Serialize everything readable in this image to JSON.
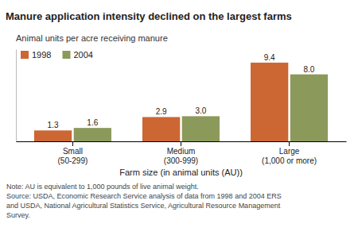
{
  "chart_data": {
    "type": "bar",
    "title": "Manure application intensity declined on the largest farms",
    "subtitle": "Animal units per acre receiving manure",
    "xlabel": "Farm size (in animal units (AU))",
    "categories": [
      "Small\n(50-299)",
      "Medium\n(300-999)",
      "Large\n(1,000 or more)"
    ],
    "series": [
      {
        "name": "1998",
        "color": "#CC6633",
        "values": [
          1.3,
          2.9,
          9.4
        ],
        "value_labels": [
          "1.3",
          "2.9",
          "9.4"
        ]
      },
      {
        "name": "2004",
        "color": "#8B9A5B",
        "values": [
          1.6,
          3.0,
          8.0
        ],
        "value_labels": [
          "1.6",
          "3.0",
          "8.0"
        ]
      }
    ],
    "ylim": [
      0,
      11
    ],
    "tick_labels": "x",
    "data_labels": true,
    "legend": "upper left",
    "note": "Note: AU is equivalent to 1,000 pounds of live animal weight.\nSource: USDA, Economic Research Service analysis of data from 1998 and 2004 ERS\nand USDA, National Agricultural Statistics Service, Agricultural Resource Management\nSurvey."
  }
}
